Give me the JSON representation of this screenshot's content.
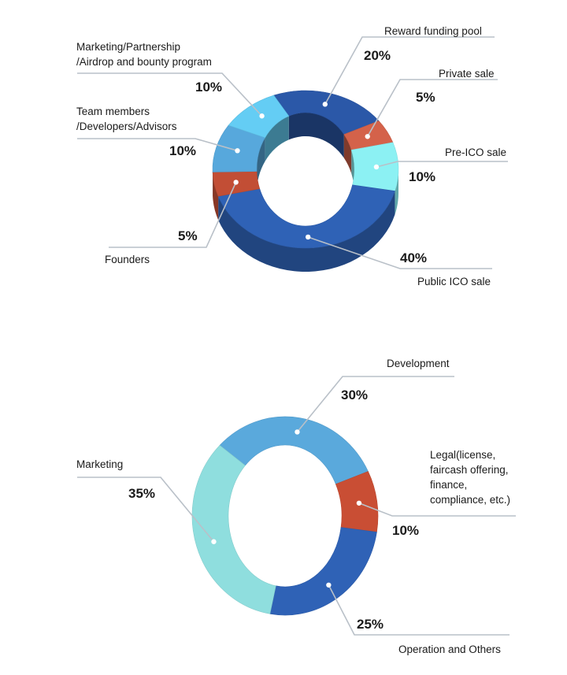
{
  "chart_data": [
    {
      "type": "pie",
      "variant": "donut-3d",
      "slices": [
        {
          "key": "reward",
          "label": "Reward funding pool",
          "value": 20,
          "pct": "20%",
          "color": "#2b58a8"
        },
        {
          "key": "private",
          "label": "Private sale",
          "value": 5,
          "pct": "5%",
          "color": "#d4624a"
        },
        {
          "key": "preico",
          "label": "Pre-ICO sale",
          "value": 10,
          "pct": "10%",
          "color": "#8cf1f3"
        },
        {
          "key": "public",
          "label": "Public ICO sale",
          "value": 40,
          "pct": "40%",
          "color": "#2f62b6"
        },
        {
          "key": "founders",
          "label": "Founders",
          "value": 5,
          "pct": "5%",
          "color": "#c24e35"
        },
        {
          "key": "team",
          "label": "Team members /Developers/Advisors",
          "label_lines": [
            "Team members",
            "/Developers/Advisors"
          ],
          "value": 10,
          "pct": "10%",
          "color": "#57a8dc"
        },
        {
          "key": "marketing",
          "label": "Marketing/Partnership /Airdrop and bounty program",
          "label_lines": [
            "Marketing/Partnership",
            "/Airdrop and bounty program"
          ],
          "value": 10,
          "pct": "10%",
          "color": "#64cdf4"
        }
      ]
    },
    {
      "type": "pie",
      "variant": "donut-3d",
      "slices": [
        {
          "key": "development",
          "label": "Development",
          "value": 30,
          "pct": "30%",
          "color": "#5aa9dc"
        },
        {
          "key": "legal",
          "label": "Legal(license, faircash offering, finance, compliance, etc.)",
          "label_lines": [
            "Legal(license,",
            "faircash offering,",
            "finance,",
            "compliance, etc.)"
          ],
          "value": 10,
          "pct": "10%",
          "color": "#c94e34"
        },
        {
          "key": "operation",
          "label": "Operation and Others",
          "value": 25,
          "pct": "25%",
          "color": "#2f62b6"
        },
        {
          "key": "marketing",
          "label": "Marketing",
          "value": 35,
          "pct": "35%",
          "color": "#8fdede"
        }
      ]
    }
  ]
}
